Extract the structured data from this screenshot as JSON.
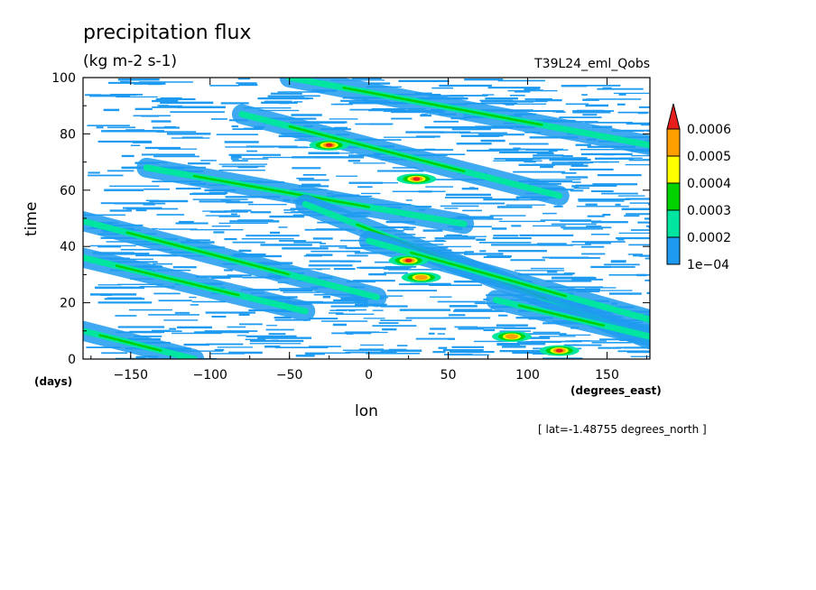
{
  "chart_data": {
    "type": "heatmap",
    "title": "precipitation flux",
    "units": "(kg m-2 s-1)",
    "run_label": "T39L24_eml_Qobs",
    "xlabel": "lon",
    "xunit": "(degrees_east)",
    "ylabel": "time",
    "yunit": "(days)",
    "annotation": "[ lat=-1.48755 degrees_north ]",
    "xlim": [
      -180,
      177
    ],
    "ylim": [
      0,
      100
    ],
    "xticks": [
      -150,
      -100,
      -50,
      0,
      50,
      100,
      150
    ],
    "yticks": [
      0,
      20,
      40,
      60,
      80,
      100
    ],
    "colorbar": {
      "levels": [
        "1e-04",
        "0.0002",
        "0.0003",
        "0.0004",
        "0.0005",
        "0.0006"
      ],
      "colors": [
        "#1e9bf0",
        "#00e6a0",
        "#00d200",
        "#ffff00",
        "#ffa000",
        "#e61e1e"
      ]
    },
    "features": [
      {
        "name": "band-1",
        "x": [
          -180,
          5
        ],
        "y": [
          49,
          22
        ],
        "level": "0.0003"
      },
      {
        "name": "band-2",
        "x": [
          -180,
          -40
        ],
        "y": [
          36,
          17
        ],
        "level": "0.0003"
      },
      {
        "name": "band-3",
        "x": [
          -140,
          60
        ],
        "y": [
          68,
          48
        ],
        "level": "0.0003"
      },
      {
        "name": "band-4",
        "x": [
          -50,
          177
        ],
        "y": [
          100,
          76
        ],
        "level": "0.0004"
      },
      {
        "name": "band-5",
        "x": [
          -80,
          120
        ],
        "y": [
          87,
          58
        ],
        "level": "0.0004"
      },
      {
        "name": "band-6",
        "x": [
          -40,
          177
        ],
        "y": [
          55,
          7
        ],
        "level": "0.0004"
      },
      {
        "name": "band-7",
        "x": [
          0,
          177
        ],
        "y": [
          42,
          14
        ],
        "level": "0.0003"
      },
      {
        "name": "band-8",
        "x": [
          -180,
          -110
        ],
        "y": [
          10,
          0
        ],
        "level": "0.0003"
      },
      {
        "name": "band-9",
        "x": [
          80,
          177
        ],
        "y": [
          21,
          8
        ],
        "level": "0.0003"
      },
      {
        "name": "peak-1",
        "x": -25,
        "y": 76,
        "level": "0.0006"
      },
      {
        "name": "peak-2",
        "x": 30,
        "y": 64,
        "level": "0.0006"
      },
      {
        "name": "peak-3",
        "x": 25,
        "y": 35,
        "level": "0.0006"
      },
      {
        "name": "peak-4",
        "x": 33,
        "y": 29,
        "level": "0.0005"
      },
      {
        "name": "peak-5",
        "x": 120,
        "y": 3,
        "level": "0.0006"
      },
      {
        "name": "peak-6",
        "x": 90,
        "y": 8,
        "level": "0.0005"
      }
    ]
  }
}
